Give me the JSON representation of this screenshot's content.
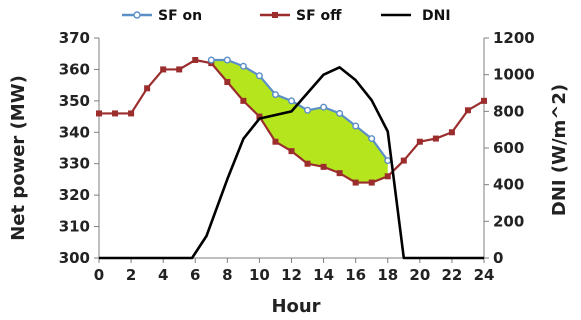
{
  "chart_data": {
    "type": "line",
    "xlabel": "Hour",
    "ylabel_left": "Net power (MW)",
    "ylabel_right": "DNI (W/m^2)",
    "x_ticks": [
      0,
      2,
      4,
      6,
      8,
      10,
      12,
      14,
      16,
      18,
      20,
      22,
      24
    ],
    "y_left_ticks": [
      300,
      310,
      320,
      330,
      340,
      350,
      360,
      370
    ],
    "y_right_ticks": [
      0,
      200,
      400,
      600,
      800,
      1000,
      1200
    ],
    "xlim": [
      0,
      24
    ],
    "ylim_left": [
      300,
      370
    ],
    "ylim_right": [
      0,
      1200
    ],
    "legend_position": "top",
    "fill_between": {
      "series_upper": "SF on",
      "series_lower": "SF off",
      "color": "#b5e61d"
    },
    "series": [
      {
        "name": "SF on",
        "axis": "left",
        "color": "#5b8fc7",
        "marker": "circle",
        "x": [
          7,
          8,
          9,
          10,
          11,
          12,
          13,
          14,
          15,
          16,
          17,
          18
        ],
        "y": [
          363,
          363,
          361,
          358,
          352,
          350,
          347,
          348,
          346,
          342,
          338,
          331
        ]
      },
      {
        "name": "SF off",
        "axis": "left",
        "color": "#9b2d2d",
        "marker": "square",
        "x": [
          0,
          1,
          2,
          3,
          4,
          5,
          6,
          7,
          8,
          9,
          10,
          11,
          12,
          13,
          14,
          15,
          16,
          17,
          18,
          19,
          20,
          21,
          22,
          23,
          24
        ],
        "y": [
          346,
          346,
          346,
          354,
          360,
          360,
          363,
          362,
          356,
          350,
          345,
          337,
          334,
          330,
          329,
          327,
          324,
          324,
          326,
          331,
          337,
          338,
          340,
          347,
          350
        ]
      },
      {
        "name": "DNI",
        "axis": "right",
        "color": "#000000",
        "marker": "none",
        "x": [
          0,
          5.8,
          6.7,
          8,
          9,
          10,
          11,
          12,
          13,
          14,
          15,
          16,
          17,
          18,
          19,
          24
        ],
        "y": [
          0,
          0,
          120,
          430,
          650,
          760,
          780,
          800,
          900,
          1000,
          1040,
          970,
          860,
          690,
          0,
          0
        ]
      }
    ]
  }
}
